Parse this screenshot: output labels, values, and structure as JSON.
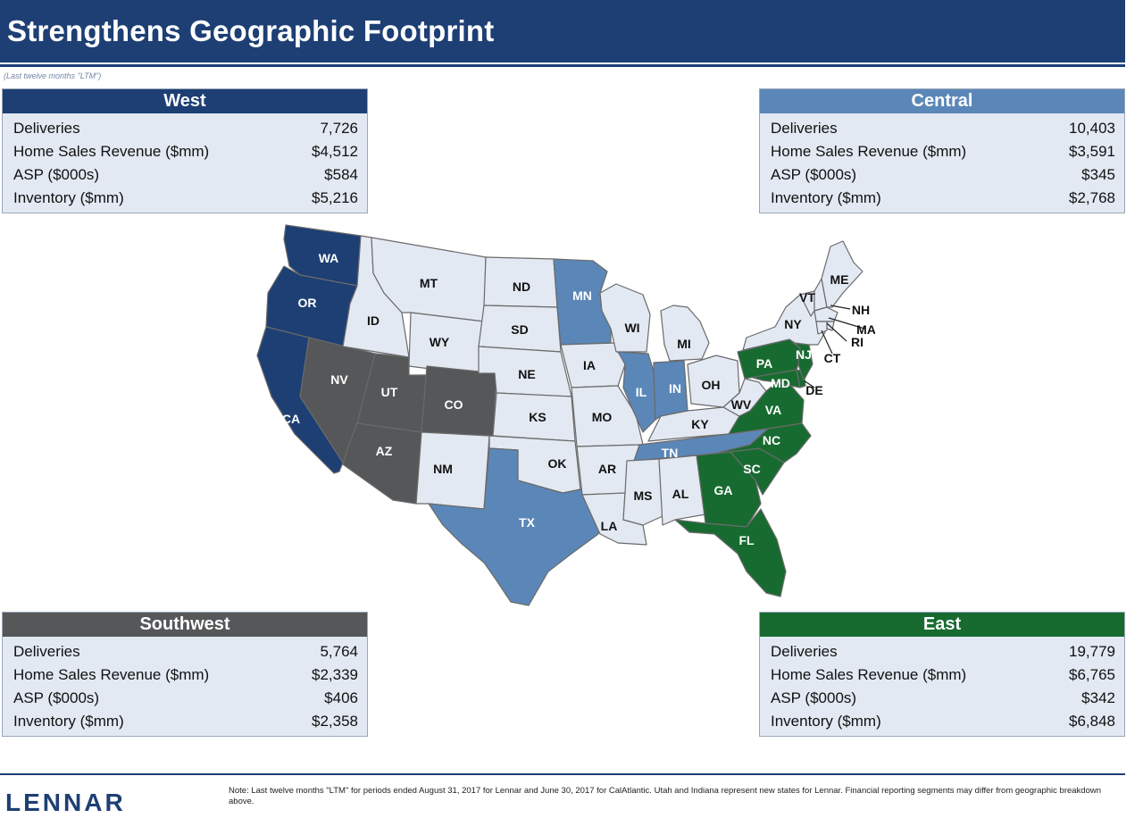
{
  "header": {
    "title": "Strengthens Geographic Footprint",
    "subtitle": "(Last  twelve months \"LTM\")"
  },
  "colors": {
    "west": "#1d3f74",
    "central": "#5b87b8",
    "southwest": "#555759",
    "east": "#176b30",
    "other": "#e3e9f3"
  },
  "panels": {
    "west": {
      "title": "West",
      "rows": [
        {
          "label": "Deliveries",
          "value": "7,726"
        },
        {
          "label": "Home Sales Revenue ($mm)",
          "value": "$4,512"
        },
        {
          "label": "ASP ($000s)",
          "value": "$584"
        },
        {
          "label": "Inventory ($mm)",
          "value": "$5,216"
        }
      ]
    },
    "central": {
      "title": "Central",
      "rows": [
        {
          "label": "Deliveries",
          "value": "10,403"
        },
        {
          "label": "Home Sales Revenue ($mm)",
          "value": "$3,591"
        },
        {
          "label": "ASP ($000s)",
          "value": "$345"
        },
        {
          "label": "Inventory ($mm)",
          "value": "$2,768"
        }
      ]
    },
    "southwest": {
      "title": "Southwest",
      "rows": [
        {
          "label": "Deliveries",
          "value": "5,764"
        },
        {
          "label": "Home Sales Revenue ($mm)",
          "value": "$2,339"
        },
        {
          "label": "ASP ($000s)",
          "value": "$406"
        },
        {
          "label": "Inventory ($mm)",
          "value": "$2,358"
        }
      ]
    },
    "east": {
      "title": "East",
      "rows": [
        {
          "label": "Deliveries",
          "value": "19,779"
        },
        {
          "label": "Home Sales Revenue ($mm)",
          "value": "$6,765"
        },
        {
          "label": "ASP ($000s)",
          "value": "$342"
        },
        {
          "label": "Inventory ($mm)",
          "value": "$6,848"
        }
      ]
    }
  },
  "map": {
    "states": [
      {
        "code": "WA",
        "region": "west"
      },
      {
        "code": "OR",
        "region": "west"
      },
      {
        "code": "CA",
        "region": "west"
      },
      {
        "code": "NV",
        "region": "southwest"
      },
      {
        "code": "UT",
        "region": "southwest"
      },
      {
        "code": "AZ",
        "region": "southwest"
      },
      {
        "code": "CO",
        "region": "southwest"
      },
      {
        "code": "MN",
        "region": "central"
      },
      {
        "code": "IL",
        "region": "central"
      },
      {
        "code": "IN",
        "region": "central"
      },
      {
        "code": "TN",
        "region": "central"
      },
      {
        "code": "TX",
        "region": "central"
      },
      {
        "code": "PA",
        "region": "east"
      },
      {
        "code": "NJ",
        "region": "east"
      },
      {
        "code": "MD",
        "region": "east"
      },
      {
        "code": "VA",
        "region": "east"
      },
      {
        "code": "NC",
        "region": "east"
      },
      {
        "code": "SC",
        "region": "east"
      },
      {
        "code": "GA",
        "region": "east"
      },
      {
        "code": "FL",
        "region": "east"
      },
      {
        "code": "DE",
        "region": "east"
      },
      {
        "code": "ID",
        "region": "other"
      },
      {
        "code": "MT",
        "region": "other"
      },
      {
        "code": "WY",
        "region": "other"
      },
      {
        "code": "NM",
        "region": "other"
      },
      {
        "code": "ND",
        "region": "other"
      },
      {
        "code": "SD",
        "region": "other"
      },
      {
        "code": "NE",
        "region": "other"
      },
      {
        "code": "KS",
        "region": "other"
      },
      {
        "code": "OK",
        "region": "other"
      },
      {
        "code": "IA",
        "region": "other"
      },
      {
        "code": "MO",
        "region": "other"
      },
      {
        "code": "AR",
        "region": "other"
      },
      {
        "code": "LA",
        "region": "other"
      },
      {
        "code": "WI",
        "region": "other"
      },
      {
        "code": "MI",
        "region": "other"
      },
      {
        "code": "OH",
        "region": "other"
      },
      {
        "code": "KY",
        "region": "other"
      },
      {
        "code": "WV",
        "region": "other"
      },
      {
        "code": "MS",
        "region": "other"
      },
      {
        "code": "AL",
        "region": "other"
      },
      {
        "code": "NY",
        "region": "other"
      },
      {
        "code": "VT",
        "region": "other"
      },
      {
        "code": "ME",
        "region": "other"
      },
      {
        "code": "NH",
        "region": "other"
      },
      {
        "code": "MA",
        "region": "other"
      },
      {
        "code": "RI",
        "region": "other"
      },
      {
        "code": "CT",
        "region": "other"
      }
    ]
  },
  "footer": {
    "logo": "LENNAR",
    "note": "Note: Last twelve months \"LTM\" for periods ended August 31, 2017 for Lennar and June 30, 2017 for CalAtlantic. Utah and Indiana represent new states for Lennar. Financial reporting segments may differ from geographic breakdown above."
  }
}
